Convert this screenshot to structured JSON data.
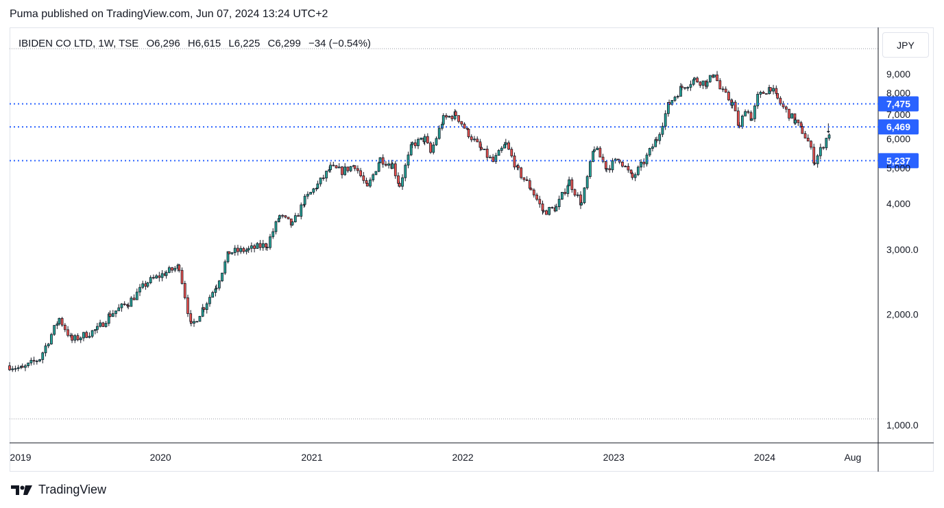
{
  "header": {
    "text": "Puma published on TradingView.com, Jun 07, 2024 13:24 UTC+2"
  },
  "legend": {
    "symbol": "IBIDEN CO LTD, 1W, TSE",
    "open": "O6,296",
    "high": "H6,615",
    "low": "L6,225",
    "close": "C6,299",
    "change": "−34 (−0.54%)"
  },
  "currency_button": "JPY",
  "footer": {
    "brand": "TradingView"
  },
  "colors": {
    "up": "#26a69a",
    "down": "#ef5350",
    "candle_body": "#131722",
    "hline": "#2962ff",
    "label_bg": "#2962ff"
  },
  "chart_data": {
    "type": "candlestick",
    "title": "",
    "interval": "1W",
    "y_axis": {
      "scale": "log",
      "range": [
        950,
        9650
      ],
      "ticks": [
        {
          "value": 1000,
          "label": "1,000.0"
        },
        {
          "value": 2000,
          "label": "2,000.0"
        },
        {
          "value": 3000,
          "label": "3,000.0"
        },
        {
          "value": 4000,
          "label": "4,000"
        },
        {
          "value": 5000,
          "label": "5,000"
        },
        {
          "value": 6000,
          "label": "6,000"
        },
        {
          "value": 7000,
          "label": "7,000"
        },
        {
          "value": 8000,
          "label": "8,000"
        },
        {
          "value": 9000,
          "label": "9,000"
        }
      ]
    },
    "x_axis": {
      "range": [
        "2019-01-01",
        "2024-08-31"
      ],
      "ticks": [
        {
          "date": "2019-01-01",
          "label": "2019"
        },
        {
          "date": "2020-01-01",
          "label": "2020"
        },
        {
          "date": "2021-01-01",
          "label": "2021"
        },
        {
          "date": "2022-01-01",
          "label": "2022"
        },
        {
          "date": "2023-01-01",
          "label": "2023"
        },
        {
          "date": "2024-01-01",
          "label": "2024"
        },
        {
          "date": "2024-08-01",
          "label": "Aug"
        }
      ]
    },
    "horizontal_lines": [
      {
        "value": 7475,
        "label": "7,475"
      },
      {
        "value": 6469,
        "label": "6,469"
      },
      {
        "value": 5237,
        "label": "5,237"
      }
    ],
    "close_path": [
      [
        "2019-01-01",
        1450
      ],
      [
        "2019-02-01",
        1420
      ],
      [
        "2019-03-15",
        1520
      ],
      [
        "2019-05-01",
        1950
      ],
      [
        "2019-06-01",
        1700
      ],
      [
        "2019-08-01",
        1820
      ],
      [
        "2019-09-01",
        2000
      ],
      [
        "2019-10-15",
        2150
      ],
      [
        "2019-12-01",
        2450
      ],
      [
        "2020-01-15",
        2600
      ],
      [
        "2020-02-15",
        2700
      ],
      [
        "2020-03-15",
        1850
      ],
      [
        "2020-04-15",
        2100
      ],
      [
        "2020-05-15",
        2400
      ],
      [
        "2020-06-15",
        2950
      ],
      [
        "2020-08-01",
        3000
      ],
      [
        "2020-09-15",
        3100
      ],
      [
        "2020-10-15",
        3700
      ],
      [
        "2020-11-15",
        3500
      ],
      [
        "2020-12-15",
        4100
      ],
      [
        "2021-01-15",
        4500
      ],
      [
        "2021-02-15",
        5000
      ],
      [
        "2021-03-15",
        4900
      ],
      [
        "2021-04-15",
        5100
      ],
      [
        "2021-05-15",
        4400
      ],
      [
        "2021-06-15",
        5300
      ],
      [
        "2021-07-15",
        5100
      ],
      [
        "2021-08-01",
        4500
      ],
      [
        "2021-09-01",
        5800
      ],
      [
        "2021-10-01",
        6000
      ],
      [
        "2021-10-15",
        5500
      ],
      [
        "2021-11-15",
        6800
      ],
      [
        "2021-12-15",
        7000
      ],
      [
        "2022-01-15",
        6200
      ],
      [
        "2022-02-15",
        5600
      ],
      [
        "2022-03-15",
        5200
      ],
      [
        "2022-04-15",
        5800
      ],
      [
        "2022-05-15",
        4900
      ],
      [
        "2022-06-15",
        4400
      ],
      [
        "2022-07-15",
        3800
      ],
      [
        "2022-08-15",
        3900
      ],
      [
        "2022-09-15",
        4600
      ],
      [
        "2022-10-15",
        4000
      ],
      [
        "2022-11-15",
        5700
      ],
      [
        "2022-12-15",
        5000
      ],
      [
        "2023-01-15",
        5300
      ],
      [
        "2023-02-15",
        4700
      ],
      [
        "2023-03-15",
        5200
      ],
      [
        "2023-04-15",
        6000
      ],
      [
        "2023-05-15",
        7500
      ],
      [
        "2023-06-15",
        8300
      ],
      [
        "2023-07-15",
        8700
      ],
      [
        "2023-08-15",
        8500
      ],
      [
        "2023-09-01",
        9100
      ],
      [
        "2023-09-15",
        8200
      ],
      [
        "2023-10-15",
        7500
      ],
      [
        "2023-11-01",
        6400
      ],
      [
        "2023-11-15",
        7300
      ],
      [
        "2023-12-01",
        6800
      ],
      [
        "2023-12-15",
        7800
      ],
      [
        "2024-01-15",
        8300
      ],
      [
        "2024-02-01",
        7700
      ],
      [
        "2024-02-15",
        7300
      ],
      [
        "2024-03-15",
        6700
      ],
      [
        "2024-04-01",
        6300
      ],
      [
        "2024-04-15",
        5900
      ],
      [
        "2024-05-01",
        5200
      ],
      [
        "2024-05-15",
        5600
      ],
      [
        "2024-06-07",
        6299
      ]
    ]
  }
}
